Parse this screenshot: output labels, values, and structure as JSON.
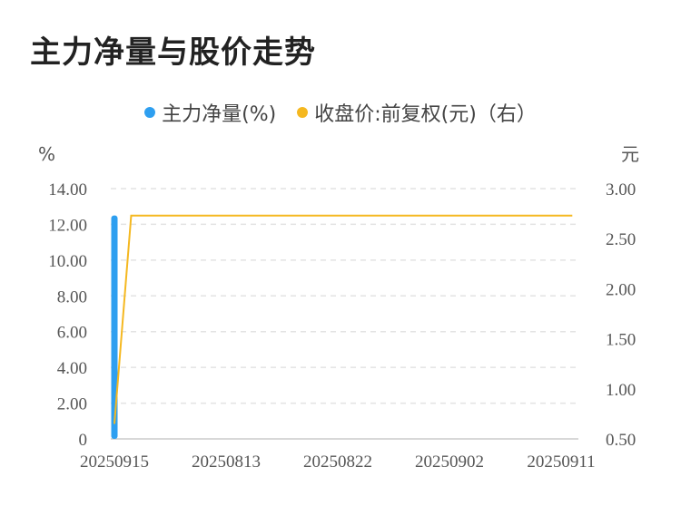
{
  "title": "主力净量与股价走势",
  "colors": {
    "bar": "#2e9ff0",
    "line": "#f5b820",
    "grid": "#e3e3e3",
    "axis": "#cccccc"
  },
  "chart_data": {
    "type": "bar+line",
    "legend": [
      {
        "name": "主力净量(%)",
        "color": "#2e9ff0"
      },
      {
        "name": "收盘价:前复权(元)（右）",
        "color": "#f5b820"
      }
    ],
    "left_axis": {
      "unit": "%",
      "ticks": [
        "0",
        "2.00",
        "4.00",
        "6.00",
        "8.00",
        "10.00",
        "12.00",
        "14.00"
      ],
      "range": [
        0,
        14
      ]
    },
    "right_axis": {
      "unit": "元",
      "ticks": [
        "0.50",
        "1.00",
        "1.50",
        "2.00",
        "2.50",
        "3.00"
      ],
      "range": [
        0.5,
        3.0
      ]
    },
    "x_tick_labels": [
      "20250915",
      "20250813",
      "20250822",
      "20250902",
      "20250911"
    ],
    "bar_series": {
      "name": "主力净量(%)",
      "points": [
        {
          "x": "20250915",
          "value": 12.5
        }
      ]
    },
    "line_series": {
      "name": "收盘价:前复权(元)（右）",
      "points": [
        {
          "x_index": 0,
          "value": 0.65
        },
        {
          "x_index": 0.15,
          "value": 2.73
        },
        {
          "x_index": 4.1,
          "value": 2.73
        }
      ]
    }
  }
}
